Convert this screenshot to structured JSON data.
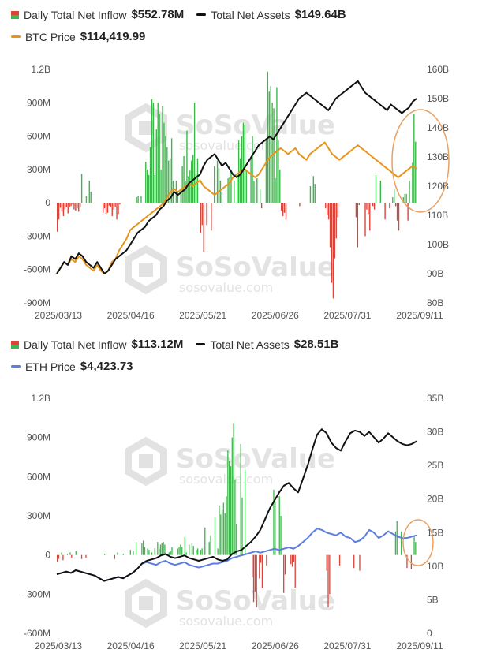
{
  "watermark": {
    "brand": "SoSoValue",
    "site": "sosovalue.com"
  },
  "charts": [
    {
      "legend": [
        {
          "label": "Daily Total Net Inflow",
          "value": "$552.78M"
        },
        {
          "label": "Total Net Assets",
          "value": "$149.64B"
        },
        {
          "label": "BTC Price",
          "value": "$114,419.99"
        }
      ],
      "colors": {
        "inflow": "#3cb84a",
        "outflow": "#d9453b",
        "assets": "#111111",
        "price": "#e8941a",
        "circle": "#e8a060"
      }
    },
    {
      "legend": [
        {
          "label": "Daily Total Net Inflow",
          "value": "$113.12M"
        },
        {
          "label": "Total Net Assets",
          "value": "$28.51B"
        },
        {
          "label": "ETH Price",
          "value": "$4,423.73"
        }
      ],
      "colors": {
        "inflow": "#3cb84a",
        "outflow": "#d9453b",
        "assets": "#111111",
        "price": "#5b7ee0",
        "circle": "#e8a060"
      }
    }
  ],
  "chart_data": [
    {
      "type": "bar+line",
      "x_ticks": [
        "2025/03/13",
        "2025/04/16",
        "2025/05/21",
        "2025/06/26",
        "2025/07/31",
        "2025/09/11"
      ],
      "left_axis_ticks": [
        "1.2B",
        "900M",
        "600M",
        "300M",
        "0",
        "-300M",
        "-600M",
        "-900M"
      ],
      "right_axis_ticks": [
        "160B",
        "150B",
        "140B",
        "130B",
        "120B",
        "110B",
        "100B",
        "90B",
        "80B"
      ],
      "left_ylim": [
        -900,
        1200
      ],
      "right_ylim": [
        80,
        160
      ],
      "net_inflow_millions": [
        -260,
        -150,
        -45,
        -80,
        -120,
        -60,
        -40,
        -95,
        -40,
        -30,
        -15,
        -60,
        -70,
        -50,
        -80,
        -40,
        260,
        0,
        0,
        60,
        0,
        200,
        100,
        0,
        0,
        0,
        0,
        0,
        0,
        0,
        -90,
        -50,
        -100,
        -90,
        -25,
        -40,
        -120,
        -60,
        -35,
        -150,
        -100,
        -15,
        0,
        0,
        0,
        0,
        0,
        0,
        0,
        0,
        0,
        0,
        50,
        60,
        0,
        60,
        0,
        0,
        370,
        300,
        250,
        500,
        930,
        900,
        250,
        660,
        900,
        800,
        300,
        870,
        720,
        600,
        500,
        380,
        400,
        580,
        200,
        0,
        200,
        100,
        0,
        130,
        330,
        420,
        200,
        650,
        240,
        290,
        380,
        430,
        900,
        260,
        400,
        0,
        -270,
        -200,
        -440,
        0,
        -200,
        0,
        0,
        -250,
        0,
        330,
        0,
        380,
        310,
        200,
        100,
        0,
        0,
        0,
        220,
        230,
        300,
        0,
        200,
        0,
        250,
        560,
        400,
        600,
        720,
        700,
        300,
        0,
        0,
        400,
        600,
        200,
        0,
        220,
        0,
        120,
        -50,
        0,
        0,
        580,
        1180,
        1000,
        1050,
        900,
        850,
        220,
        1040,
        560,
        300,
        -70,
        -120,
        -90,
        -150,
        0,
        0,
        0,
        0,
        0,
        0,
        0,
        0,
        -30,
        0,
        0,
        0,
        0,
        0,
        0,
        150,
        0,
        240,
        170,
        0,
        0,
        0,
        0,
        0,
        0,
        -50,
        -110,
        -150,
        -400,
        -720,
        -860,
        -500,
        -320,
        -130,
        0,
        0,
        0,
        0,
        0,
        0,
        0,
        0,
        0,
        0,
        0,
        -130,
        -400,
        -20,
        0,
        0,
        0,
        -300,
        -60,
        -100,
        -250,
        0,
        -30,
        -60,
        250,
        0,
        0,
        200,
        0,
        0,
        -150,
        0,
        0,
        -50,
        0,
        50,
        120,
        -30,
        -160,
        -250,
        0,
        0,
        50,
        80,
        80,
        -160,
        200,
        0,
        360,
        800,
        550
      ],
      "total_net_assets_billions": [
        90,
        92,
        94,
        93,
        96,
        95,
        97,
        96,
        94,
        93,
        92,
        94,
        92,
        90,
        91,
        93,
        95,
        96,
        97,
        98,
        100,
        102,
        104,
        105,
        106,
        108,
        109,
        110,
        112,
        113,
        115,
        116,
        118,
        117,
        118,
        119,
        121,
        122,
        123,
        124,
        127,
        129,
        130,
        131,
        129,
        127,
        128,
        126,
        124,
        123,
        124,
        126,
        128,
        130,
        132,
        134,
        135,
        136,
        137,
        136,
        138,
        140,
        142,
        144,
        146,
        148,
        150,
        151,
        152,
        151,
        150,
        149,
        148,
        147,
        146,
        148,
        150,
        151,
        152,
        153,
        154,
        155,
        156,
        154,
        152,
        151,
        150,
        149,
        148,
        147,
        146,
        148,
        147,
        146,
        145,
        146,
        147,
        149,
        150
      ],
      "btc_price_billions_axis": [
        90,
        92,
        94,
        93,
        95,
        94,
        96,
        95,
        93,
        92,
        91,
        93,
        91,
        90,
        91,
        94,
        95,
        98,
        100,
        102,
        105,
        106,
        107,
        108,
        109,
        110,
        111,
        112,
        113,
        114,
        116,
        118,
        119,
        118,
        119,
        120,
        121,
        120,
        121,
        122,
        120,
        119,
        118,
        117,
        118,
        119,
        120,
        121,
        123,
        124,
        125,
        126,
        125,
        124,
        123,
        124,
        126,
        128,
        130,
        131,
        132,
        133,
        132,
        131,
        132,
        133,
        131,
        130,
        129,
        131,
        132,
        133,
        134,
        135,
        133,
        131,
        130,
        129,
        130,
        131,
        132,
        133,
        134,
        133,
        132,
        131,
        130,
        129,
        128,
        127,
        126,
        125,
        124,
        123,
        124,
        125,
        126,
        127,
        126
      ],
      "annotation": "circle around latest values"
    },
    {
      "type": "bar+line",
      "x_ticks": [
        "2025/03/13",
        "2025/04/16",
        "2025/05/21",
        "2025/06/26",
        "2025/07/31",
        "2025/09/11"
      ],
      "left_axis_ticks": [
        "1.2B",
        "900M",
        "600M",
        "300M",
        "0",
        "-300M",
        "-600M"
      ],
      "right_axis_ticks": [
        "35B",
        "30B",
        "25B",
        "20B",
        "15B",
        "10B",
        "5B",
        "0"
      ],
      "left_ylim": [
        -600,
        1200
      ],
      "right_ylim": [
        0,
        35
      ],
      "net_inflow_millions": [
        -50,
        -30,
        0,
        20,
        -40,
        0,
        0,
        10,
        0,
        20,
        -20,
        0,
        0,
        30,
        0,
        0,
        0,
        -30,
        0,
        0,
        -20,
        0,
        0,
        0,
        0,
        0,
        0,
        0,
        0,
        0,
        0,
        0,
        0,
        10,
        0,
        0,
        0,
        0,
        0,
        0,
        -30,
        0,
        20,
        0,
        0,
        0,
        10,
        0,
        0,
        0,
        0,
        40,
        0,
        30,
        0,
        100,
        0,
        0,
        0,
        90,
        110,
        60,
        0,
        50,
        40,
        0,
        20,
        0,
        50,
        0,
        100,
        50,
        80,
        90,
        100,
        80,
        0,
        0,
        20,
        30,
        60,
        0,
        0,
        0,
        50,
        60,
        80,
        60,
        0,
        140,
        20,
        0,
        80,
        0,
        90,
        70,
        0,
        40,
        50,
        0,
        40,
        50,
        0,
        210,
        0,
        0,
        100,
        150,
        0,
        0,
        290,
        0,
        50,
        380,
        310,
        350,
        400,
        320,
        450,
        800,
        720,
        680,
        900,
        1010,
        580,
        240,
        0,
        0,
        850,
        440,
        0,
        650,
        0,
        0,
        0,
        0,
        -170,
        -360,
        -280,
        -400,
        0,
        -180,
        -60,
        -250,
        0,
        0,
        -80,
        0,
        0,
        0,
        0,
        500,
        410,
        0,
        0,
        450,
        300,
        0,
        -290,
        -150,
        0,
        0,
        0,
        -70,
        -90,
        -50,
        -250,
        0,
        0,
        0,
        0,
        0,
        0,
        0,
        0,
        0,
        0,
        0,
        0,
        0,
        0,
        0,
        0,
        0,
        0,
        0,
        0,
        0,
        -120,
        -400,
        -300,
        0,
        0,
        0,
        0,
        0,
        0,
        -80,
        0,
        0,
        0,
        0,
        0,
        0,
        0,
        0,
        0,
        -100,
        0,
        0,
        0,
        -120,
        0,
        0,
        0,
        0,
        0,
        0,
        0,
        0,
        0,
        0,
        0,
        0,
        0,
        0,
        0,
        0,
        0,
        0,
        0,
        0,
        0,
        0,
        0,
        0,
        180,
        260,
        0,
        0,
        180,
        0,
        0,
        0,
        -100,
        0,
        0,
        -110,
        0,
        150,
        100
      ],
      "total_net_assets_billions": [
        8.8,
        9.0,
        9.2,
        9.0,
        9.4,
        9.2,
        9.0,
        8.8,
        8.6,
        8.2,
        7.8,
        8.0,
        8.2,
        8.4,
        8.2,
        8.6,
        9.0,
        9.6,
        10.4,
        10.8,
        11.0,
        11.2,
        11.6,
        11.8,
        11.4,
        11.2,
        11.4,
        11.6,
        11.2,
        11.0,
        10.8,
        11.0,
        11.2,
        11.4,
        11.0,
        10.8,
        11.0,
        11.8,
        12.2,
        12.4,
        13.0,
        13.6,
        14.4,
        15.4,
        17.0,
        18.6,
        19.8,
        21.0,
        22.0,
        22.4,
        21.6,
        21.0,
        23.0,
        25.0,
        27.4,
        29.6,
        30.4,
        29.8,
        28.4,
        27.6,
        27.2,
        28.6,
        29.8,
        30.2,
        30.0,
        29.4,
        30.0,
        29.2,
        28.4,
        29.0,
        29.8,
        29.2,
        28.6,
        28.2,
        28.0,
        28.2,
        28.6
      ],
      "eth_price_billions_axis": [
        8.8,
        9.0,
        9.2,
        9.0,
        9.4,
        9.2,
        9.0,
        8.8,
        8.6,
        8.2,
        7.8,
        8.0,
        8.2,
        8.4,
        8.2,
        8.6,
        9.0,
        9.6,
        10.4,
        10.6,
        10.4,
        10.2,
        10.6,
        10.8,
        10.4,
        10.2,
        10.4,
        10.6,
        10.2,
        10.0,
        9.8,
        10.0,
        10.2,
        10.4,
        10.4,
        10.6,
        10.8,
        11.2,
        11.4,
        11.6,
        11.8,
        12.0,
        12.2,
        12.0,
        12.2,
        12.4,
        12.6,
        12.4,
        12.6,
        12.8,
        12.6,
        13.0,
        13.6,
        14.2,
        15.0,
        15.6,
        15.4,
        15.0,
        14.8,
        14.6,
        15.0,
        14.4,
        14.2,
        13.6,
        13.8,
        14.4,
        15.4,
        15.0,
        14.2,
        14.6,
        15.2,
        14.8,
        14.4,
        14.2,
        14.2,
        14.4,
        14.6
      ],
      "annotation": "circle around latest values"
    }
  ]
}
